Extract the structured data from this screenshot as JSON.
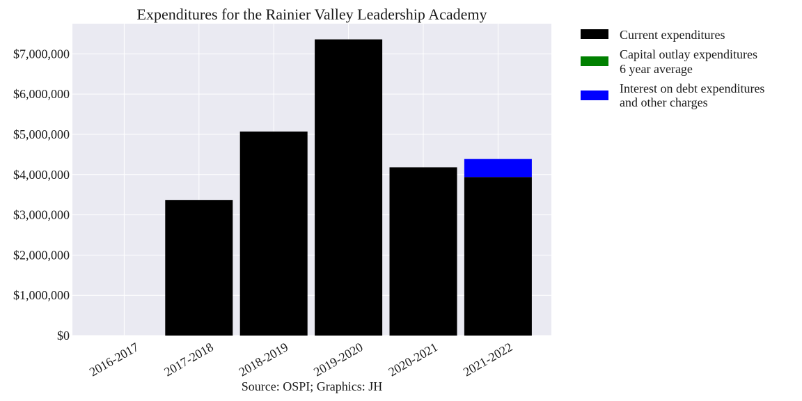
{
  "chart_data": {
    "type": "bar",
    "title": "Expenditures for the Rainier Valley Leadership Academy",
    "source": "Source: OSPI; Graphics: JH",
    "categories": [
      "2016-2017",
      "2017-2018",
      "2018-2019",
      "2019-2020",
      "2020-2021",
      "2021-2022"
    ],
    "stacked": true,
    "ylim": [
      0,
      7750000
    ],
    "yticks": [
      0,
      1000000,
      2000000,
      3000000,
      4000000,
      5000000,
      6000000,
      7000000
    ],
    "ytick_labels": [
      "$0",
      "$1,000,000",
      "$2,000,000",
      "$3,000,000",
      "$4,000,000",
      "$5,000,000",
      "$6,000,000",
      "$7,000,000"
    ],
    "grid": true,
    "legend_position": "outside-right",
    "series": [
      {
        "name": "Current expenditures",
        "color": "#000000",
        "values": [
          0,
          3370000,
          5070000,
          7360000,
          4180000,
          3940000
        ]
      },
      {
        "name": "Capital outlay expenditures",
        "name_line2": "6 year average",
        "color": "#008000",
        "values": [
          0,
          0,
          0,
          0,
          0,
          0
        ]
      },
      {
        "name": "Interest on debt expenditures",
        "name_line2": "and other charges",
        "color": "#0000ff",
        "values": [
          0,
          0,
          0,
          0,
          0,
          450000
        ]
      }
    ]
  }
}
